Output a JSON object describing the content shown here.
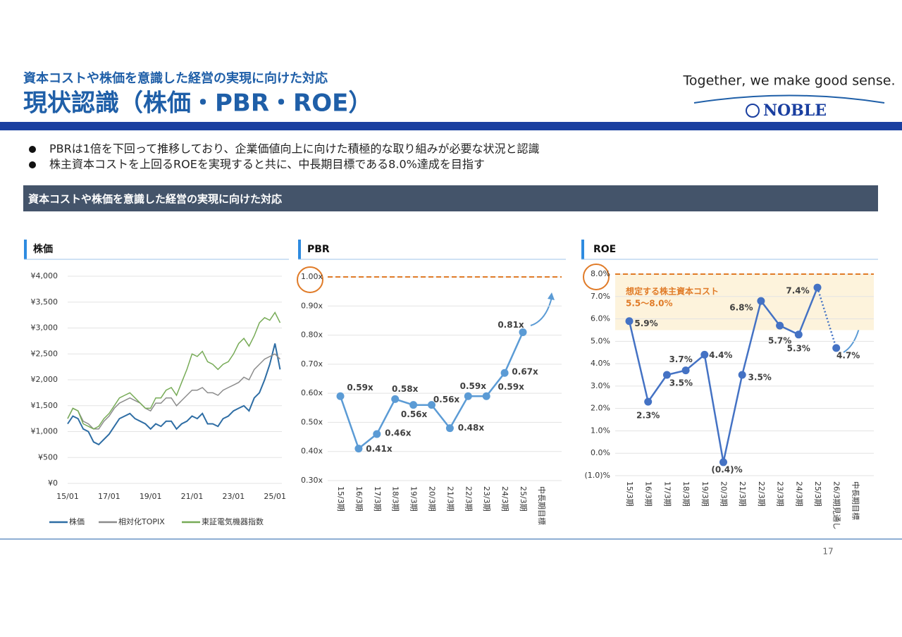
{
  "header": {
    "subtitle": "資本コストや株価を意識した経営の実現に向けた対応",
    "title": "現状認識（株価・PBR・ROE）",
    "tagline": "Together, we make good sense.",
    "logo": "NOBLE"
  },
  "bullets": [
    "PBRは1倍を下回って推移しており、企業価値向上に向けた積極的な取り組みが必要な状況と認識",
    "株主資本コストを上回るROEを実現すると共に、中長期目標である8.0%達成を目指す"
  ],
  "section": "資本コストや株価を意識した経営の実現に向けた対応",
  "chart_data": [
    {
      "type": "line",
      "title": "株価",
      "x": [
        "15/01",
        "15/04",
        "15/07",
        "15/10",
        "16/01",
        "16/04",
        "16/07",
        "16/10",
        "17/01",
        "17/04",
        "17/07",
        "17/10",
        "18/01",
        "18/04",
        "18/07",
        "18/10",
        "19/01",
        "19/04",
        "19/07",
        "19/10",
        "20/01",
        "20/04",
        "20/07",
        "20/10",
        "21/01",
        "21/04",
        "21/07",
        "21/10",
        "22/01",
        "22/04",
        "22/07",
        "22/10",
        "23/01",
        "23/04",
        "23/07",
        "23/10",
        "24/01",
        "24/04",
        "24/07",
        "24/10",
        "25/01",
        "25/04"
      ],
      "series": [
        {
          "name": "株価",
          "color": "#2e6da4",
          "values": [
            1150,
            1300,
            1250,
            1050,
            1000,
            800,
            750,
            850,
            950,
            1100,
            1250,
            1300,
            1350,
            1250,
            1200,
            1150,
            1050,
            1150,
            1100,
            1200,
            1200,
            1050,
            1150,
            1200,
            1300,
            1250,
            1350,
            1150,
            1150,
            1100,
            1250,
            1300,
            1400,
            1450,
            1500,
            1400,
            1650,
            1750,
            2000,
            2300,
            2700,
            2200
          ]
        },
        {
          "name": "相対化TOPIX",
          "color": "#8c8c8c",
          "values": [
            1250,
            1450,
            1400,
            1200,
            1150,
            1050,
            1050,
            1200,
            1300,
            1450,
            1550,
            1600,
            1650,
            1600,
            1550,
            1450,
            1400,
            1550,
            1550,
            1650,
            1650,
            1500,
            1600,
            1700,
            1800,
            1800,
            1850,
            1750,
            1750,
            1700,
            1800,
            1850,
            1900,
            1950,
            2050,
            2000,
            2200,
            2300,
            2400,
            2450,
            2500,
            2400
          ]
        },
        {
          "name": "東証電気機器指数",
          "color": "#77ab57",
          "values": [
            1250,
            1450,
            1400,
            1150,
            1100,
            1050,
            1100,
            1250,
            1350,
            1500,
            1650,
            1700,
            1750,
            1650,
            1550,
            1450,
            1450,
            1650,
            1650,
            1800,
            1850,
            1700,
            1950,
            2200,
            2500,
            2450,
            2550,
            2350,
            2300,
            2200,
            2300,
            2350,
            2500,
            2700,
            2800,
            2650,
            2850,
            3100,
            3200,
            3150,
            3300,
            3100
          ]
        }
      ],
      "xlim": [
        "15/01",
        "25/05"
      ],
      "xticks": [
        "15/01",
        "17/01",
        "19/01",
        "21/01",
        "23/01",
        "25/01"
      ],
      "ylim": [
        0,
        4000
      ],
      "yticks": [
        {
          "value": 0,
          "label": "¥0"
        },
        {
          "value": 500,
          "label": "¥500"
        },
        {
          "value": 1000,
          "label": "¥1,000"
        },
        {
          "value": 1500,
          "label": "¥1,500"
        },
        {
          "value": 2000,
          "label": "¥2,000"
        },
        {
          "value": 2500,
          "label": "¥2,500"
        },
        {
          "value": 3000,
          "label": "¥3,000"
        },
        {
          "value": 3500,
          "label": "¥3,500"
        },
        {
          "value": 4000,
          "label": "¥4,000"
        }
      ],
      "grid": true,
      "legend": "bottom"
    },
    {
      "type": "line",
      "title": "PBR",
      "color": "#5b9bd5",
      "categories": [
        "15/3期",
        "16/3期",
        "17/3期",
        "18/3期",
        "19/3期",
        "20/3期",
        "21/3期",
        "22/3期",
        "23/3期",
        "24/3期",
        "25/3期",
        "中長期目標"
      ],
      "values": [
        0.59,
        0.41,
        0.46,
        0.58,
        0.56,
        0.56,
        0.48,
        0.59,
        0.59,
        0.67,
        0.81,
        null
      ],
      "value_labels": [
        "0.59x",
        "0.41x",
        "0.46x",
        "0.58x",
        "0.56x",
        "0.56x",
        "0.48x",
        "0.59x",
        "0.59x",
        "0.67x",
        "0.81x",
        null
      ],
      "ylim": [
        0.3,
        1.0
      ],
      "yticks": [
        {
          "value": 0.3,
          "label": "0.30x"
        },
        {
          "value": 0.4,
          "label": "0.40x"
        },
        {
          "value": 0.5,
          "label": "0.50x"
        },
        {
          "value": 0.6,
          "label": "0.60x"
        },
        {
          "value": 0.7,
          "label": "0.70x"
        },
        {
          "value": 0.8,
          "label": "0.80x"
        },
        {
          "value": 0.9,
          "label": "0.90x"
        },
        {
          "value": 1.0,
          "label": "1.00x"
        }
      ],
      "grid": true,
      "reference_line": 1.0,
      "reference_color": "#e07b28"
    },
    {
      "type": "line",
      "title": "ROE",
      "color": "#4472c4",
      "categories": [
        "15/3期",
        "16/3期",
        "17/3期",
        "18/3期",
        "19/3期",
        "20/3期",
        "21/3期",
        "22/3期",
        "23/3期",
        "24/3期",
        "25/3期",
        "26/3期見通し",
        "中長期目標"
      ],
      "values": [
        5.9,
        2.3,
        3.5,
        3.7,
        4.4,
        -0.4,
        3.5,
        6.8,
        5.7,
        5.3,
        7.4,
        4.7,
        null
      ],
      "value_labels": [
        "5.9%",
        "2.3%",
        "3.5%",
        "3.7%",
        "4.4%",
        "(0.4)%",
        "3.5%",
        "6.8%",
        "5.7%",
        "5.3%",
        "7.4%",
        "4.7%",
        null
      ],
      "ylim": [
        -1,
        8
      ],
      "yticks": [
        {
          "value": -1,
          "label": "(1.0)%"
        },
        {
          "value": 0,
          "label": "0.0%"
        },
        {
          "value": 1,
          "label": "1.0%"
        },
        {
          "value": 2,
          "label": "2.0%"
        },
        {
          "value": 3,
          "label": "3.0%"
        },
        {
          "value": 4,
          "label": "4.0%"
        },
        {
          "value": 5,
          "label": "5.0%"
        },
        {
          "value": 6,
          "label": "6.0%"
        },
        {
          "value": 7,
          "label": "7.0%"
        },
        {
          "value": 8,
          "label": "8.0%"
        }
      ],
      "grid": true,
      "reference_line": 8.0,
      "reference_color": "#e07b28",
      "band": [
        5.5,
        8.0
      ],
      "band_label": "想定する株主資本コスト",
      "band_range_label": "5.5〜8.0%"
    }
  ],
  "page_number": "17"
}
